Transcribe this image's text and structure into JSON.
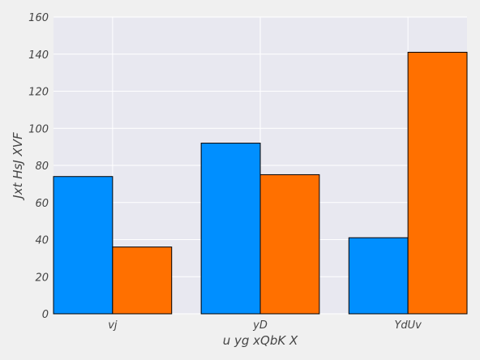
{
  "chart_data": {
    "type": "bar",
    "title": "",
    "xlabel": "u yg xQbK X",
    "ylabel": "Jxt HsJ XVF",
    "categories": [
      "vj",
      "yD",
      "YdUv"
    ],
    "series": [
      {
        "values": [
          74,
          92,
          41
        ],
        "color": "#008fff"
      },
      {
        "values": [
          36,
          75,
          141
        ],
        "color": "#ff7000"
      }
    ],
    "ylim": [
      0,
      160
    ],
    "yticks": [
      0,
      20,
      40,
      60,
      80,
      100,
      120,
      140,
      160
    ],
    "grid": true,
    "legend": "none",
    "colors": {
      "background": "#f0f0f0",
      "plot_area": "#e8e8f0",
      "grid": "#ffffff",
      "bar_edge": "#000000"
    }
  }
}
